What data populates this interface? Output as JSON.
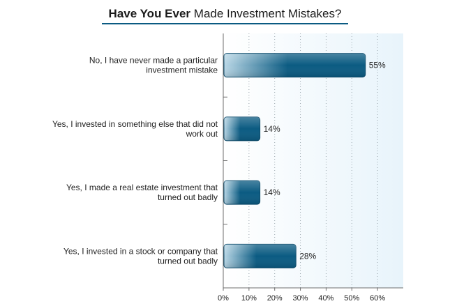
{
  "chart_data": {
    "type": "bar",
    "orientation": "horizontal",
    "title_bold": "Have You Ever",
    "title_rest": "Made Investment Mistakes?",
    "categories": [
      [
        "No, I have never made a particular",
        "investment mistake"
      ],
      [
        "Yes, I invested in something else that did not",
        "work out"
      ],
      [
        "Yes, I made a real estate investment that",
        "turned out badly"
      ],
      [
        "Yes, I invested in a stock or company that",
        "turned out badly"
      ]
    ],
    "values": [
      55,
      14,
      14,
      28
    ],
    "value_labels": [
      "55%",
      "14%",
      "14%",
      "28%"
    ],
    "xlim": [
      0,
      70
    ],
    "xticks": [
      0,
      10,
      20,
      30,
      40,
      50,
      60
    ],
    "xtick_labels": [
      "0%",
      "10%",
      "20%",
      "30%",
      "40%",
      "50%",
      "60%"
    ],
    "grid": "vertical-dotted",
    "colors": {
      "bar_dark": "#0b5b82",
      "bar_light": "#b9d7e6",
      "plot_bg_left": "#ffffff",
      "plot_bg_right": "#e8f4fb",
      "title_rule": "#0b5b82"
    }
  }
}
